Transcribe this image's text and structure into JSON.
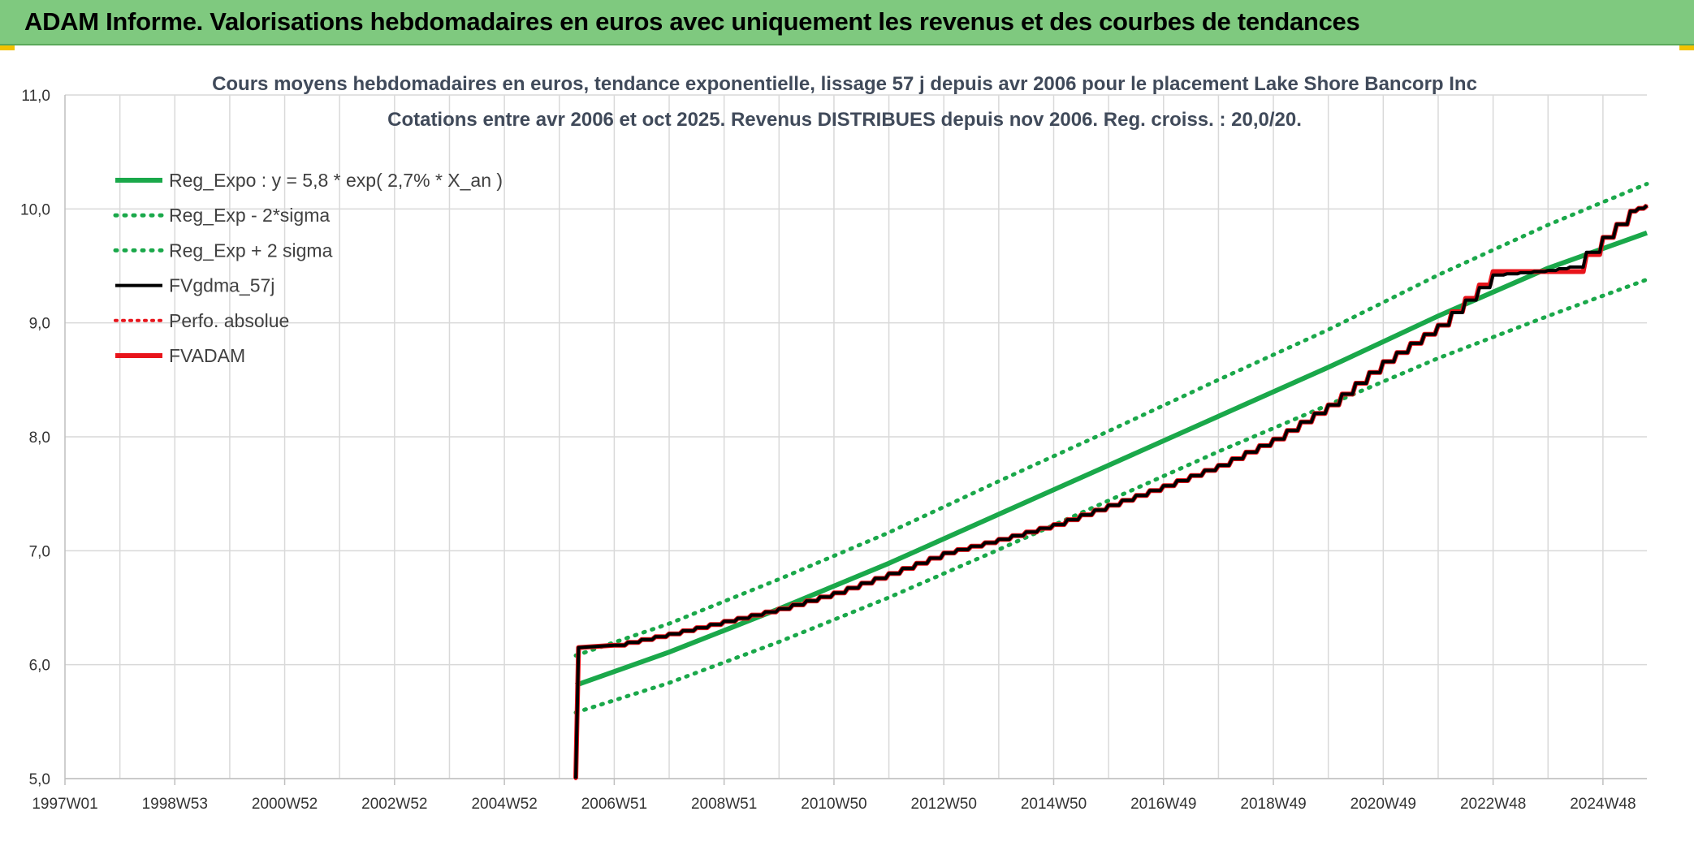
{
  "banner": {
    "title": "ADAM Informe. Valorisations hebdomadaires en euros avec uniquement les revenus et des courbes de tendances"
  },
  "colors": {
    "banner_bg": "#7fc97f",
    "trend_green": "#1aa84a",
    "fvgdma_black": "#000000",
    "fvadam_red": "#e8141b",
    "perfo_red": "#e8141b",
    "grid": "#d9d9d9",
    "title_text": "#404a5a"
  },
  "chart_data": {
    "type": "line",
    "title_line1": "Cours moyens hebdomadaires en euros, tendance exponentielle, lissage 57 j depuis avr 2006 pour le placement Lake Shore Bancorp Inc",
    "title_line2": "Cotations entre avr 2006 et oct 2025. Revenus DISTRIBUES depuis nov 2006. Reg. croiss. : 20,0/20.",
    "xlabel": "",
    "ylabel": "",
    "xlim": [
      1997.0,
      2025.8
    ],
    "ylim": [
      5.0,
      11.0
    ],
    "y_ticks": [
      "5,0",
      "6,0",
      "7,0",
      "8,0",
      "9,0",
      "10,0",
      "11,0"
    ],
    "x_tick_labels": [
      {
        "label": "1997W01",
        "year": 1997.0
      },
      {
        "label": "1998W53",
        "year": 1999.0
      },
      {
        "label": "2000W52",
        "year": 2001.0
      },
      {
        "label": "2002W52",
        "year": 2003.0
      },
      {
        "label": "2004W52",
        "year": 2005.0
      },
      {
        "label": "2006W51",
        "year": 2007.0
      },
      {
        "label": "2008W51",
        "year": 2009.0
      },
      {
        "label": "2010W50",
        "year": 2011.0
      },
      {
        "label": "2012W50",
        "year": 2013.0
      },
      {
        "label": "2014W50",
        "year": 2015.0
      },
      {
        "label": "2016W49",
        "year": 2017.0
      },
      {
        "label": "2018W49",
        "year": 2019.0
      },
      {
        "label": "2020W49",
        "year": 2021.0
      },
      {
        "label": "2022W48",
        "year": 2023.0
      },
      {
        "label": "2024W48",
        "year": 2025.0
      }
    ],
    "grid": true,
    "legend_position": "top-left",
    "legend": [
      {
        "name": "Reg_Expo : y = 5,8 * exp( 2,7% *  X_an )",
        "style": "solid-thick",
        "color": "#1aa84a"
      },
      {
        "name": "Reg_Exp - 2*sigma",
        "style": "dotted",
        "color": "#1aa84a"
      },
      {
        "name": "Reg_Exp + 2 sigma",
        "style": "dotted",
        "color": "#1aa84a"
      },
      {
        "name": "FVgdma_57j",
        "style": "solid",
        "color": "#000000"
      },
      {
        "name": "Perfo. absolue",
        "style": "dotted",
        "color": "#e8141b"
      },
      {
        "name": "FVADAM",
        "style": "solid-thick",
        "color": "#e8141b"
      }
    ],
    "series": [
      {
        "name": "Reg_Expo : y = 5,8 * exp( 2,7% *  X_an )",
        "x": [
          2006.3,
          2008.0,
          2010.0,
          2012.0,
          2014.0,
          2016.0,
          2018.0,
          2020.0,
          2022.0,
          2024.0,
          2025.8
        ],
        "values": [
          5.82,
          6.11,
          6.49,
          6.89,
          7.32,
          7.75,
          8.18,
          8.61,
          9.06,
          9.48,
          9.79
        ]
      },
      {
        "name": "Reg_Exp - 2*sigma",
        "x": [
          2006.3,
          2008.0,
          2010.0,
          2012.0,
          2014.0,
          2016.0,
          2018.0,
          2020.0,
          2022.0,
          2024.0,
          2025.8
        ],
        "values": [
          5.58,
          5.84,
          6.2,
          6.59,
          7.01,
          7.44,
          7.87,
          8.28,
          8.69,
          9.06,
          9.38
        ]
      },
      {
        "name": "Reg_Exp + 2 sigma",
        "x": [
          2006.3,
          2008.0,
          2010.0,
          2012.0,
          2014.0,
          2016.0,
          2018.0,
          2020.0,
          2022.0,
          2024.0,
          2025.8
        ],
        "values": [
          6.08,
          6.36,
          6.75,
          7.16,
          7.61,
          8.05,
          8.5,
          8.94,
          9.42,
          9.86,
          10.22
        ]
      },
      {
        "name": "FVgdma_57j",
        "x": [
          2006.3,
          2006.35,
          2007.0,
          2008.0,
          2009.0,
          2010.0,
          2011.0,
          2012.0,
          2013.0,
          2014.0,
          2015.0,
          2016.0,
          2017.0,
          2018.0,
          2019.0,
          2020.0,
          2021.0,
          2022.0,
          2023.0,
          2024.0,
          2024.4,
          2025.0,
          2025.5,
          2025.8
        ],
        "values": [
          5.0,
          6.15,
          6.17,
          6.27,
          6.38,
          6.49,
          6.63,
          6.8,
          6.98,
          7.1,
          7.23,
          7.4,
          7.57,
          7.75,
          7.98,
          8.28,
          8.66,
          8.98,
          9.42,
          9.46,
          9.49,
          9.75,
          9.98,
          10.03
        ]
      },
      {
        "name": "Perfo. absolue",
        "x": [
          2006.3,
          2006.35,
          2007.0,
          2008.0,
          2009.0,
          2010.0,
          2011.0,
          2012.0,
          2013.0,
          2014.0,
          2015.0,
          2016.0,
          2017.0,
          2018.0,
          2019.0,
          2020.0,
          2021.0,
          2022.0,
          2023.0,
          2023.5,
          2024.4,
          2025.0,
          2025.5,
          2025.8
        ],
        "values": [
          5.0,
          6.15,
          6.17,
          6.27,
          6.38,
          6.49,
          6.63,
          6.8,
          6.98,
          7.1,
          7.23,
          7.4,
          7.57,
          7.75,
          7.98,
          8.28,
          8.66,
          8.98,
          9.45,
          9.45,
          9.45,
          9.75,
          9.98,
          10.03
        ]
      },
      {
        "name": "FVADAM",
        "x": [
          2006.3,
          2006.35,
          2007.0,
          2008.0,
          2009.0,
          2010.0,
          2011.0,
          2012.0,
          2013.0,
          2014.0,
          2015.0,
          2016.0,
          2017.0,
          2018.0,
          2019.0,
          2020.0,
          2021.0,
          2022.0,
          2023.0,
          2023.5,
          2024.4,
          2025.0,
          2025.5,
          2025.8
        ],
        "values": [
          5.0,
          6.15,
          6.17,
          6.27,
          6.38,
          6.49,
          6.63,
          6.8,
          6.98,
          7.1,
          7.23,
          7.4,
          7.57,
          7.75,
          7.98,
          8.28,
          8.66,
          8.98,
          9.45,
          9.45,
          9.45,
          9.75,
          9.98,
          10.03
        ]
      }
    ]
  }
}
